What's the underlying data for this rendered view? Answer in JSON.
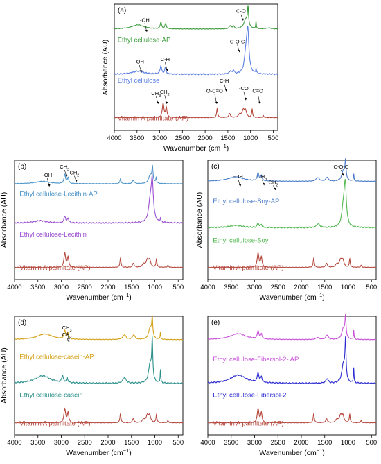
{
  "chart_data": [
    {
      "type": "line",
      "panel": "(a)",
      "xlabel": "Wavenumber (cm",
      "xlabel_sup": "−1",
      "xlabel_close": ")",
      "ylabel": "Absorbance (AU)",
      "xlim": [
        4000,
        400
      ],
      "xticks": [
        4000,
        3500,
        3000,
        2500,
        2000,
        1500,
        1000,
        500
      ],
      "x_reversed": true,
      "grid": false,
      "series": [
        {
          "name": "Ethyl cellulose-AP",
          "color": "#3a9a3a",
          "offset": 0.8,
          "amp": 0.14,
          "baseline": 0.018,
          "peaks": [
            [
              3480,
              0.24,
              160
            ],
            [
              2975,
              0.38,
              18
            ],
            [
              2870,
              0.28,
              20
            ],
            [
              1450,
              0.18,
              25
            ],
            [
              1375,
              0.16,
              20
            ],
            [
              1100,
              0.55,
              55
            ],
            [
              1055,
              1.0,
              14
            ],
            [
              880,
              0.42,
              8
            ],
            [
              600,
              0.06,
              60
            ]
          ]
        },
        {
          "name": "Ethyl cellulose",
          "color": "#5b7fe0",
          "offset": 0.44,
          "amp": 0.3,
          "baseline": 0.015,
          "peaks": [
            [
              3480,
              0.08,
              160
            ],
            [
              2975,
              0.22,
              20
            ],
            [
              2875,
              0.16,
              20
            ],
            [
              1445,
              0.08,
              25
            ],
            [
              1375,
              0.1,
              18
            ],
            [
              1100,
              0.5,
              40
            ],
            [
              1060,
              1.0,
              30
            ],
            [
              880,
              0.12,
              10
            ]
          ]
        },
        {
          "name": "Vitamin A palmitate (AP)",
          "color": "#b5473c",
          "offset": 0.1,
          "amp": 0.13,
          "baseline": 0.012,
          "peaks": [
            [
              2925,
              0.85,
              22
            ],
            [
              2855,
              0.6,
              18
            ],
            [
              1735,
              0.55,
              14
            ],
            [
              1460,
              0.25,
              20
            ],
            [
              1240,
              0.2,
              30
            ],
            [
              1160,
              0.45,
              30
            ],
            [
              1110,
              0.4,
              25
            ],
            [
              965,
              0.5,
              12
            ],
            [
              720,
              0.12,
              15
            ]
          ]
        }
      ],
      "annotations": [
        {
          "text": "-OH",
          "x": 3330
        },
        {
          "text": "C-O",
          "x": 1210
        },
        {
          "text": "C-O-C",
          "x": 1290
        },
        {
          "text": "-OH",
          "x": 3450
        },
        {
          "text": "C-H",
          "x": 2880
        },
        {
          "text": "C-H",
          "x": 1580
        },
        {
          "text": "CH",
          "sub": "3",
          "x": 3080
        },
        {
          "text": "CH",
          "sub": "2",
          "x": 2890
        },
        {
          "text": "O-C=O",
          "x": 1790
        },
        {
          "text": "-CO",
          "x": 1150
        },
        {
          "text": "C=O",
          "x": 840
        }
      ]
    },
    {
      "type": "line",
      "panel": "(b)",
      "xlabel": "Wavenumber (cm",
      "xlabel_sup": "−1",
      "xlabel_close": ")",
      "ylabel": "Absorbance (AU)",
      "xlim": [
        4000,
        400
      ],
      "xticks": [
        4000,
        3500,
        3000,
        2500,
        2000,
        1500,
        1000,
        500
      ],
      "x_reversed": true,
      "grid": false,
      "series": [
        {
          "name": "Ethyl cellulose-Lecithin-AP",
          "color": "#4a93c8",
          "offset": 0.8,
          "amp": 0.14,
          "baseline": 0.015,
          "peaks": [
            [
              3400,
              0.15,
              180
            ],
            [
              2925,
              0.55,
              20
            ],
            [
              2855,
              0.35,
              18
            ],
            [
              1735,
              0.3,
              14
            ],
            [
              1460,
              0.2,
              25
            ],
            [
              1100,
              0.5,
              40
            ],
            [
              1050,
              0.9,
              15
            ],
            [
              970,
              0.35,
              10
            ]
          ]
        },
        {
          "name": "Ethyl cellulose-Lecithin",
          "color": "#9b4fd0",
          "offset": 0.47,
          "amp": 0.32,
          "baseline": 0.012,
          "peaks": [
            [
              3450,
              0.06,
              150
            ],
            [
              2925,
              0.18,
              20
            ],
            [
              2855,
              0.12,
              18
            ],
            [
              1100,
              0.5,
              40
            ],
            [
              1055,
              1.0,
              28
            ],
            [
              880,
              0.1,
              10
            ]
          ]
        },
        {
          "name": "Vitamin A palmitate (AP)",
          "color": "#b5473c",
          "offset": 0.1,
          "amp": 0.14,
          "baseline": 0.012,
          "peaks": [
            [
              2925,
              0.85,
              22
            ],
            [
              2855,
              0.6,
              18
            ],
            [
              1735,
              0.55,
              14
            ],
            [
              1460,
              0.25,
              20
            ],
            [
              1240,
              0.2,
              30
            ],
            [
              1160,
              0.45,
              30
            ],
            [
              1110,
              0.4,
              25
            ],
            [
              965,
              0.5,
              12
            ],
            [
              720,
              0.12,
              15
            ]
          ]
        }
      ],
      "annotations": [
        {
          "text": "-OH",
          "x": 3300
        },
        {
          "text": "CH",
          "sub": "3",
          "x": 2930
        },
        {
          "text": "CH",
          "sub": "2",
          "x": 2720
        }
      ]
    },
    {
      "type": "line",
      "panel": "(c)",
      "xlabel": "Wavenumber (cm",
      "xlabel_sup": "−1",
      "xlabel_close": ")",
      "ylabel": "Absorbance (AU)",
      "xlim": [
        4000,
        400
      ],
      "xticks": [
        4000,
        3500,
        3000,
        2500,
        2000,
        1500,
        1000,
        500
      ],
      "x_reversed": true,
      "grid": false,
      "series": [
        {
          "name": "Ethyl cellulose-Soy-AP",
          "color": "#4a7cc8",
          "offset": 0.82,
          "amp": 0.15,
          "baseline": 0.018,
          "peaks": [
            [
              3400,
              0.25,
              200
            ],
            [
              2925,
              0.45,
              20
            ],
            [
              2855,
              0.3,
              18
            ],
            [
              1650,
              0.2,
              40
            ],
            [
              1450,
              0.22,
              30
            ],
            [
              1100,
              0.6,
              40
            ],
            [
              1055,
              1.0,
              14
            ],
            [
              880,
              0.4,
              8
            ]
          ]
        },
        {
          "name": "Ethyl cellulose-Soy",
          "color": "#4fb84f",
          "offset": 0.43,
          "amp": 0.32,
          "baseline": 0.012,
          "peaks": [
            [
              3400,
              0.06,
              180
            ],
            [
              2925,
              0.12,
              20
            ],
            [
              2855,
              0.08,
              18
            ],
            [
              1640,
              0.1,
              40
            ],
            [
              1100,
              0.5,
              40
            ],
            [
              1060,
              1.0,
              28
            ]
          ]
        },
        {
          "name": "Vitamin A palmitate (AP)",
          "color": "#b5473c",
          "offset": 0.1,
          "amp": 0.14,
          "baseline": 0.012,
          "peaks": [
            [
              2925,
              0.85,
              22
            ],
            [
              2855,
              0.6,
              18
            ],
            [
              1735,
              0.55,
              14
            ],
            [
              1460,
              0.25,
              20
            ],
            [
              1240,
              0.2,
              30
            ],
            [
              1160,
              0.45,
              30
            ],
            [
              1110,
              0.4,
              25
            ],
            [
              965,
              0.5,
              12
            ],
            [
              720,
              0.12,
              15
            ]
          ]
        }
      ],
      "annotations": [
        {
          "text": "C-O-C",
          "x": 1150
        },
        {
          "text": "-OH",
          "x": 3350
        },
        {
          "text": "CH",
          "sub": "3",
          "x": 2840
        },
        {
          "text": "CH",
          "sub": "2",
          "x": 2600
        }
      ]
    },
    {
      "type": "line",
      "panel": "(d)",
      "xlabel": "Wavenumber (cm",
      "xlabel_sup": "−1",
      "xlabel_close": ")",
      "ylabel": "Absorbance (AU)",
      "xlim": [
        4000,
        400
      ],
      "xticks": [
        4000,
        3500,
        3000,
        2500,
        2000,
        1500,
        1000,
        500
      ],
      "x_reversed": true,
      "grid": false,
      "series": [
        {
          "name": "Ethyl cellulose-casein-AP",
          "color": "#d4a017",
          "offset": 0.8,
          "amp": 0.16,
          "baseline": 0.015,
          "peaks": [
            [
              3350,
              0.3,
              200
            ],
            [
              2925,
              0.45,
              20
            ],
            [
              2855,
              0.3,
              18
            ],
            [
              1650,
              0.25,
              40
            ],
            [
              1450,
              0.25,
              30
            ],
            [
              1100,
              0.6,
              40
            ],
            [
              1055,
              1.0,
              14
            ],
            [
              880,
              0.4,
              8
            ]
          ]
        },
        {
          "name": "Ethyl cellulose-casein",
          "color": "#2a8f8a",
          "offset": 0.43,
          "amp": 0.32,
          "baseline": 0.012,
          "peaks": [
            [
              3400,
              0.2,
              200
            ],
            [
              2975,
              0.18,
              20
            ],
            [
              2875,
              0.12,
              18
            ],
            [
              1650,
              0.15,
              40
            ],
            [
              1100,
              0.5,
              40
            ],
            [
              1055,
              1.0,
              14
            ],
            [
              880,
              0.35,
              8
            ]
          ]
        },
        {
          "name": "Vitamin A palmitate (AP)",
          "color": "#b5473c",
          "offset": 0.1,
          "amp": 0.14,
          "baseline": 0.012,
          "peaks": [
            [
              2925,
              0.85,
              22
            ],
            [
              2855,
              0.6,
              18
            ],
            [
              1735,
              0.55,
              14
            ],
            [
              1460,
              0.25,
              20
            ],
            [
              1240,
              0.2,
              30
            ],
            [
              1160,
              0.45,
              30
            ],
            [
              1110,
              0.4,
              25
            ],
            [
              965,
              0.5,
              12
            ],
            [
              720,
              0.12,
              15
            ]
          ]
        }
      ],
      "annotations": [
        {
          "text": "CH",
          "sub": "3",
          "x": 2880
        },
        {
          "text": "CH",
          "sub": "2",
          "x": 2880
        }
      ]
    },
    {
      "type": "line",
      "panel": "(e)",
      "xlabel": "Wavenumber (cm",
      "xlabel_sup": "−1",
      "xlabel_close": ")",
      "ylabel": "",
      "xlim": [
        4000,
        400
      ],
      "xticks": [
        4000,
        3500,
        3000,
        2500,
        2000,
        1500,
        1000,
        500
      ],
      "x_reversed": true,
      "grid": false,
      "series": [
        {
          "name": "Ethyl cellulose-Fibersol-2- AP",
          "color": "#c84fd8",
          "offset": 0.8,
          "amp": 0.17,
          "baseline": 0.015,
          "peaks": [
            [
              3350,
              0.3,
              200
            ],
            [
              2925,
              0.4,
              20
            ],
            [
              2855,
              0.25,
              18
            ],
            [
              1650,
              0.1,
              40
            ],
            [
              1450,
              0.22,
              30
            ],
            [
              1100,
              0.55,
              40
            ],
            [
              1055,
              1.0,
              14
            ],
            [
              880,
              0.45,
              8
            ]
          ]
        },
        {
          "name": "Ethyl cellulose-Fibersol-2",
          "color": "#2a2ad0",
          "offset": 0.43,
          "amp": 0.32,
          "baseline": 0.012,
          "peaks": [
            [
              3350,
              0.22,
              200
            ],
            [
              2925,
              0.25,
              20
            ],
            [
              2855,
              0.15,
              18
            ],
            [
              1450,
              0.12,
              30
            ],
            [
              1100,
              0.5,
              40
            ],
            [
              1055,
              1.0,
              14
            ],
            [
              880,
              0.4,
              8
            ]
          ]
        },
        {
          "name": "Vitamin A palmitate (AP)",
          "color": "#b5473c",
          "offset": 0.1,
          "amp": 0.14,
          "baseline": 0.012,
          "peaks": [
            [
              2925,
              0.85,
              22
            ],
            [
              2855,
              0.6,
              18
            ],
            [
              1735,
              0.55,
              14
            ],
            [
              1460,
              0.25,
              20
            ],
            [
              1240,
              0.2,
              30
            ],
            [
              1160,
              0.45,
              30
            ],
            [
              1110,
              0.4,
              25
            ],
            [
              965,
              0.5,
              12
            ],
            [
              720,
              0.12,
              15
            ]
          ]
        }
      ],
      "annotations": []
    }
  ]
}
